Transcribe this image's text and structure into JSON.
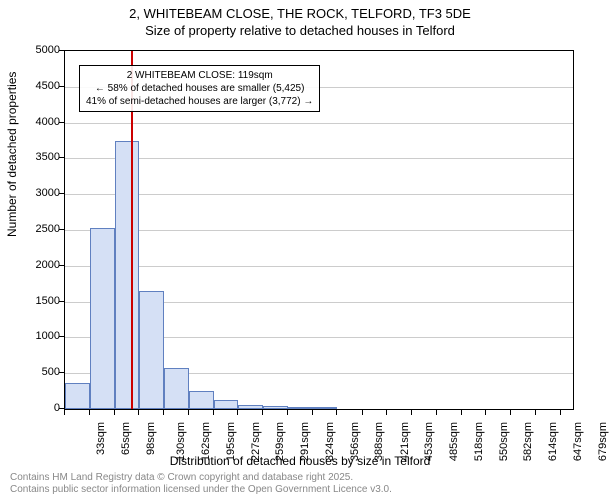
{
  "title": {
    "line1": "2, WHITEBEAM CLOSE, THE ROCK, TELFORD, TF3 5DE",
    "line2": "Size of property relative to detached houses in Telford"
  },
  "chart": {
    "type": "histogram",
    "background_color": "#ffffff",
    "border_color": "#000000",
    "grid_color": "#cccccc",
    "bar_fill": "#d5e0f5",
    "bar_border": "#6080c0",
    "marker_color": "#cc0000",
    "ylim": [
      0,
      5000
    ],
    "ytick_step": 500,
    "yticks": [
      0,
      500,
      1000,
      1500,
      2000,
      2500,
      3000,
      3500,
      4000,
      4500,
      5000
    ],
    "xlim": [
      33,
      695
    ],
    "xtick_step": 32.5,
    "xticks": [
      33,
      65,
      98,
      130,
      162,
      195,
      227,
      259,
      291,
      324,
      356,
      388,
      421,
      453,
      485,
      518,
      550,
      582,
      614,
      647,
      679
    ],
    "xtick_unit": "sqm",
    "bars": [
      {
        "x": 33,
        "w": 32,
        "v": 370
      },
      {
        "x": 65,
        "w": 33,
        "v": 2530
      },
      {
        "x": 98,
        "w": 32,
        "v": 3750
      },
      {
        "x": 130,
        "w": 32,
        "v": 1650
      },
      {
        "x": 162,
        "w": 33,
        "v": 570
      },
      {
        "x": 195,
        "w": 32,
        "v": 250
      },
      {
        "x": 227,
        "w": 32,
        "v": 120
      },
      {
        "x": 259,
        "w": 32,
        "v": 60
      },
      {
        "x": 291,
        "w": 33,
        "v": 45
      },
      {
        "x": 324,
        "w": 32,
        "v": 25
      },
      {
        "x": 356,
        "w": 32,
        "v": 15
      }
    ],
    "marker_x": 119,
    "y_axis_label": "Number of detached properties",
    "x_axis_label": "Distribution of detached houses by size in Telford",
    "label_fontsize": 12,
    "tick_fontsize": 11
  },
  "annotation": {
    "line1": "2 WHITEBEAM CLOSE: 119sqm",
    "line2": "← 58% of detached houses are smaller (5,425)",
    "line3": "41% of semi-detached houses are larger (3,772) →",
    "border_color": "#000000",
    "fontsize": 10
  },
  "footer": {
    "line1": "Contains HM Land Registry data © Crown copyright and database right 2025.",
    "line2": "Contains public sector information licensed under the Open Government Licence v3.0.",
    "color": "#888888",
    "fontsize": 10
  }
}
